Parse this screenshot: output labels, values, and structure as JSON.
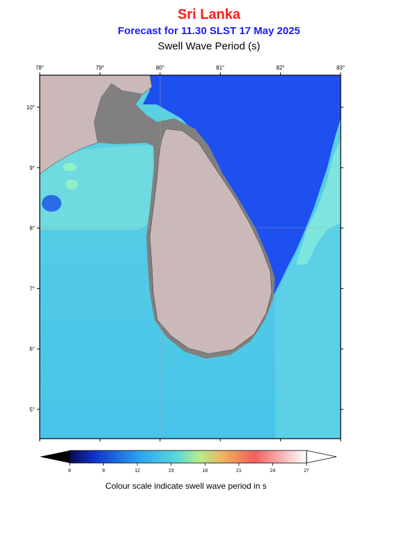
{
  "header": {
    "region": "Sri Lanka",
    "forecast": "Forecast for  11.30 SLST 17 May 2025",
    "variable": "Swell Wave Period (s)"
  },
  "map": {
    "lon_ticks": [
      "78°",
      "79°",
      "80°",
      "81°",
      "82°",
      "83°"
    ],
    "lat_ticks": [
      "10°",
      "9°",
      "8°",
      "7°",
      "6°",
      "5°"
    ],
    "colors": {
      "land": "#cbb9b9",
      "shelf": "#808080",
      "deep_blue": "#1e4ff0",
      "ocean_main": "#4bc6e8",
      "ocean_light": "#5fd5e2",
      "ocean_cyan": "#7de8e2"
    }
  },
  "colorbar": {
    "ticks": [
      "6",
      "9",
      "12",
      "15",
      "18",
      "21",
      "24",
      "27"
    ],
    "caption": "Colour scale indicate swell wave period in s"
  }
}
